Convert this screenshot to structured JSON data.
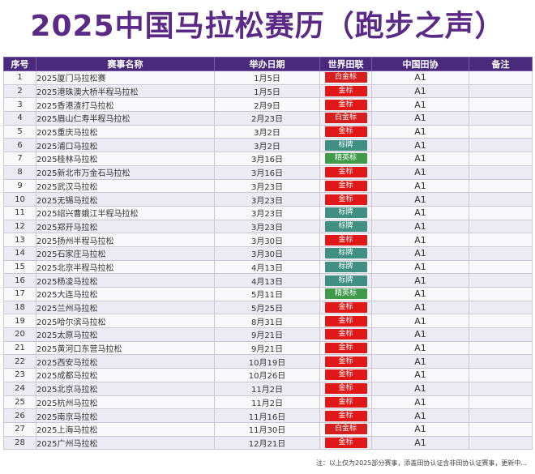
{
  "title": "2025中国马拉松赛历（跑步之声）",
  "headers": [
    "序号",
    "赛事名称",
    "举办日期",
    "世界田联",
    "中国田协",
    "备注"
  ],
  "colors": {
    "白金标": "#d61f1f",
    "金标": "#e01818",
    "标牌": "#3f8f82",
    "精英标": "#3f9a4a"
  },
  "rows": [
    {
      "idx": "1",
      "name": "2025厦门马拉松赛",
      "date": "1月5日",
      "wa": "白金标",
      "caa": "A1",
      "note": ""
    },
    {
      "idx": "2",
      "name": "2025港珠澳大桥半程马拉松",
      "date": "1月5日",
      "wa": "金标",
      "caa": "A1",
      "note": ""
    },
    {
      "idx": "3",
      "name": "2025香港渣打马拉松",
      "date": "2月9日",
      "wa": "金标",
      "caa": "A1",
      "note": ""
    },
    {
      "idx": "4",
      "name": "2025眉山仁寿半程马拉松",
      "date": "2月23日",
      "wa": "白金标",
      "caa": "A1",
      "note": ""
    },
    {
      "idx": "5",
      "name": "2025重庆马拉松",
      "date": "3月2日",
      "wa": "金标",
      "caa": "A1",
      "note": ""
    },
    {
      "idx": "6",
      "name": "2025浦口马拉松",
      "date": "3月2日",
      "wa": "标牌",
      "caa": "A1",
      "note": ""
    },
    {
      "idx": "7",
      "name": "2025桂林马拉松",
      "date": "3月16日",
      "wa": "精英标",
      "caa": "A1",
      "note": ""
    },
    {
      "idx": "8",
      "name": "2025新北市万金石马拉松",
      "date": "3月16日",
      "wa": "金标",
      "caa": "A1",
      "note": ""
    },
    {
      "idx": "9",
      "name": "2025武汉马拉松",
      "date": "3月23日",
      "wa": "金标",
      "caa": "A1",
      "note": ""
    },
    {
      "idx": "10",
      "name": "2025无锡马拉松",
      "date": "3月23日",
      "wa": "金标",
      "caa": "A1",
      "note": ""
    },
    {
      "idx": "11",
      "name": "2025绍兴曹娥江半程马拉松",
      "date": "3月23日",
      "wa": "标牌",
      "caa": "A1",
      "note": ""
    },
    {
      "idx": "12",
      "name": "2025郑开马拉松",
      "date": "3月23日",
      "wa": "标牌",
      "caa": "A1",
      "note": ""
    },
    {
      "idx": "13",
      "name": "2025扬州半程马拉松",
      "date": "3月30日",
      "wa": "金标",
      "caa": "A1",
      "note": ""
    },
    {
      "idx": "14",
      "name": "2025石家庄马拉松",
      "date": "3月30日",
      "wa": "标牌",
      "caa": "A1",
      "note": ""
    },
    {
      "idx": "15",
      "name": "2025北京半程马拉松",
      "date": "4月13日",
      "wa": "标牌",
      "caa": "A1",
      "note": ""
    },
    {
      "idx": "16",
      "name": "2025杨凌马拉松",
      "date": "4月13日",
      "wa": "标牌",
      "caa": "A1",
      "note": ""
    },
    {
      "idx": "17",
      "name": "2025大连马拉松",
      "date": "5月11日",
      "wa": "精英标",
      "caa": "A1",
      "note": ""
    },
    {
      "idx": "18",
      "name": "2025兰州马拉松",
      "date": "5月25日",
      "wa": "金标",
      "caa": "A1",
      "note": ""
    },
    {
      "idx": "19",
      "name": "2025哈尔滨马拉松",
      "date": "8月31日",
      "wa": "金标",
      "caa": "A1",
      "note": ""
    },
    {
      "idx": "20",
      "name": "2025太原马拉松",
      "date": "9月21日",
      "wa": "金标",
      "caa": "A1",
      "note": ""
    },
    {
      "idx": "21",
      "name": "2025黄河口东营马拉松",
      "date": "9月21日",
      "wa": "金标",
      "caa": "A1",
      "note": ""
    },
    {
      "idx": "22",
      "name": "2025西安马拉松",
      "date": "10月19日",
      "wa": "金标",
      "caa": "A1",
      "note": ""
    },
    {
      "idx": "23",
      "name": "2025成都马拉松",
      "date": "10月26日",
      "wa": "金标",
      "caa": "A1",
      "note": ""
    },
    {
      "idx": "24",
      "name": "2025北京马拉松",
      "date": "11月2日",
      "wa": "金标",
      "caa": "A1",
      "note": ""
    },
    {
      "idx": "25",
      "name": "2025杭州马拉松",
      "date": "11月2日",
      "wa": "金标",
      "caa": "A1",
      "note": ""
    },
    {
      "idx": "26",
      "name": "2025南京马拉松",
      "date": "11月16日",
      "wa": "金标",
      "caa": "A1",
      "note": ""
    },
    {
      "idx": "27",
      "name": "2025上海马拉松",
      "date": "11月30日",
      "wa": "白金标",
      "caa": "A1",
      "note": ""
    },
    {
      "idx": "28",
      "name": "2025广州马拉松",
      "date": "12月21日",
      "wa": "金标",
      "caa": "A1",
      "note": ""
    }
  ],
  "footnote": "注：以上仅为2025部分赛事，添盖田协认证含非田协认证赛事，更新中..."
}
